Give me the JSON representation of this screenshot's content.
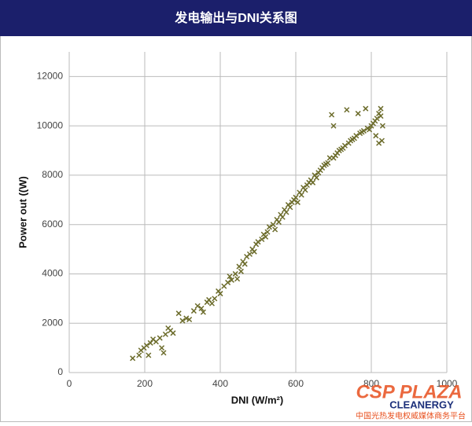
{
  "chart_data": {
    "type": "scatter",
    "title": "发电输出与DNI关系图",
    "x_label": "DNI (W/m²)",
    "y_label": "Power out ((W)",
    "xlim": [
      0,
      1000
    ],
    "xticks": [
      0,
      200,
      400,
      600,
      800,
      1000
    ],
    "ylim": [
      0,
      13000
    ],
    "yticks": [
      0,
      2000,
      4000,
      6000,
      8000,
      10000,
      12000
    ],
    "grid": true,
    "color": "#6b6b2a",
    "watermark": [
      "CSP PLAZA",
      "CLEANERGY",
      "中国光热发电权威媒体商务平台"
    ],
    "x": [
      168,
      185,
      190,
      198,
      205,
      210,
      215,
      222,
      230,
      240,
      245,
      250,
      255,
      262,
      268,
      275,
      290,
      300,
      310,
      318,
      330,
      340,
      350,
      355,
      365,
      370,
      378,
      385,
      395,
      400,
      410,
      420,
      425,
      430,
      440,
      445,
      450,
      455,
      460,
      465,
      470,
      478,
      485,
      490,
      495,
      500,
      510,
      515,
      520,
      525,
      530,
      540,
      545,
      550,
      555,
      560,
      565,
      570,
      575,
      580,
      585,
      590,
      595,
      600,
      605,
      610,
      615,
      620,
      625,
      630,
      635,
      640,
      645,
      650,
      655,
      660,
      665,
      670,
      675,
      680,
      685,
      690,
      695,
      700,
      700,
      705,
      710,
      715,
      720,
      725,
      730,
      735,
      740,
      745,
      750,
      755,
      760,
      765,
      770,
      775,
      780,
      785,
      790,
      795,
      800,
      805,
      810,
      815,
      820,
      825,
      828,
      820,
      812,
      830,
      825
    ],
    "y": [
      580,
      700,
      900,
      1000,
      1100,
      700,
      1200,
      1350,
      1250,
      1400,
      1000,
      800,
      1550,
      1800,
      1700,
      1600,
      2400,
      2100,
      2200,
      2150,
      2500,
      2700,
      2600,
      2450,
      2850,
      2950,
      2800,
      3000,
      3300,
      3200,
      3500,
      3650,
      3900,
      3750,
      4000,
      3800,
      4300,
      4100,
      4500,
      4400,
      4700,
      4800,
      5000,
      4900,
      5200,
      5300,
      5400,
      5600,
      5500,
      5700,
      5900,
      6000,
      5800,
      6200,
      6100,
      6400,
      6300,
      6600,
      6500,
      6800,
      6700,
      6900,
      7000,
      7100,
      6900,
      7300,
      7200,
      7500,
      7400,
      7600,
      7700,
      7800,
      7700,
      8000,
      7900,
      8100,
      8200,
      8300,
      8400,
      8450,
      8500,
      8700,
      10450,
      10000,
      8700,
      8800,
      8900,
      9000,
      9050,
      9100,
      9200,
      10650,
      9300,
      9400,
      9450,
      9500,
      9600,
      10500,
      9700,
      9750,
      9800,
      10700,
      9900,
      9850,
      10000,
      10100,
      10200,
      10300,
      10500,
      10700,
      9400,
      9300,
      9600,
      10000,
      10400
    ]
  }
}
